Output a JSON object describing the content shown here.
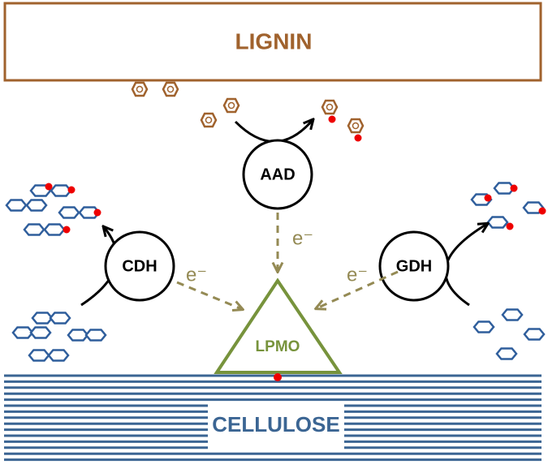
{
  "lignin": {
    "label": "LIGNIN"
  },
  "enzymes": {
    "aad": "AAD",
    "cdh": "CDH",
    "gdh": "GDH",
    "lpmo": "LPMO"
  },
  "electrons": [
    "e⁻",
    "e⁻",
    "e⁻"
  ],
  "cellulose": {
    "label": "CELLULOSE"
  }
}
